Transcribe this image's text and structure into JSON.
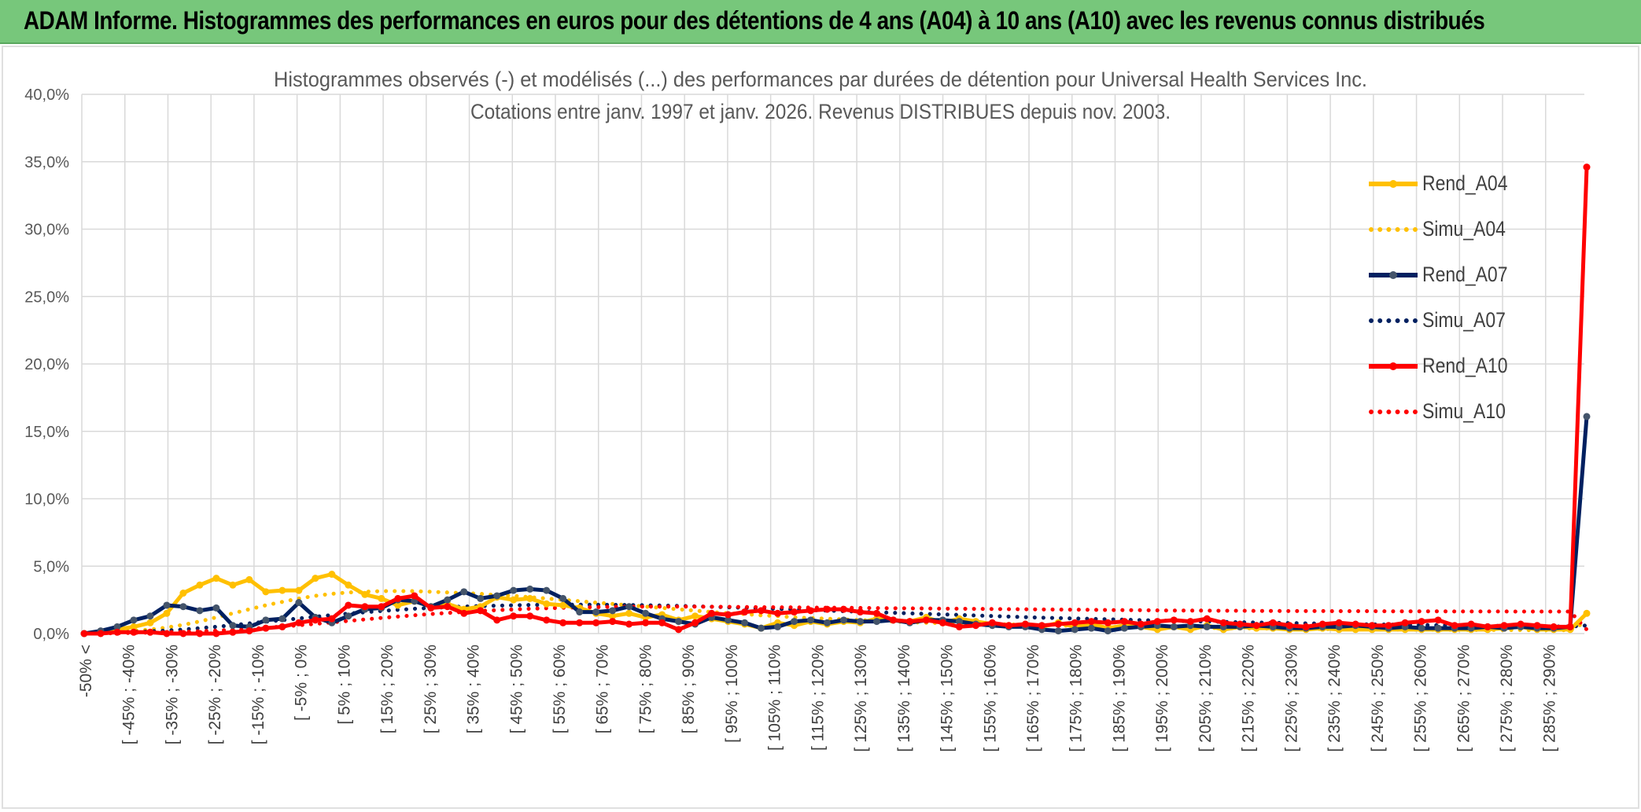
{
  "header": {
    "banner_title": "ADAM Informe. Histogrammes des performances en euros pour des détentions de 4 ans (A04) à 10 ans (A10) avec les revenus connus distribués"
  },
  "chart_data": {
    "type": "line",
    "title": "Histogrammes observés (-) et modélisés (...) des performances par durées de détention pour Universal Health Services Inc.",
    "subtitle": "Cotations entre janv. 1997 et janv. 2026. Revenus DISTRIBUES depuis nov. 2003.",
    "xlabel": "",
    "ylabel": "",
    "ylim": [
      0,
      40
    ],
    "y_ticks": [
      "0,0%",
      "5,0%",
      "10,0%",
      "15,0%",
      "20,0%",
      "25,0%",
      "30,0%",
      "35,0%",
      "40,0%"
    ],
    "x_tick_labels": [
      "-50% <",
      "[ -45% ; -40%",
      "[ -35% ; -30%",
      "[ -25% ; -20%",
      "[ -15% ; -10%",
      "[ -5% ; 0%",
      "[ 5% ; 10%",
      "[ 15% ; 20%",
      "[ 25% ; 30%",
      "[ 35% ; 40%",
      "[ 45% ; 50%",
      "[ 55% ; 60%",
      "[ 65% ; 70%",
      "[ 75% ; 80%",
      "[ 85% ; 90%",
      "[ 95% ; 100%",
      "[ 105% ; 110%",
      "[ 115% ; 120%",
      "[ 125% ; 130%",
      "[ 135% ; 140%",
      "[ 145% ; 150%",
      "[ 155% ; 160%",
      "[ 165% ; 170%",
      "[ 175% ; 180%",
      "[ 185% ; 190%",
      "[ 195% ; 200%",
      "[ 205% ; 210%",
      "[ 215% ; 220%",
      "[ 225% ; 230%",
      "[ 235% ; 240%",
      "[ 245% ; 250%",
      "[ 255% ; 260%",
      "[ 265% ; 270%",
      "[ 275% ; 280%",
      "[ 285% ; 290%"
    ],
    "grid": true,
    "legend_position": "right",
    "series": [
      {
        "name": "Rend_A04",
        "style": "solid",
        "color": "#FFC000",
        "markers": true,
        "values": [
          0.0,
          0.1,
          0.3,
          0.5,
          0.8,
          1.5,
          3.0,
          3.6,
          4.1,
          3.6,
          4.0,
          3.1,
          3.2,
          3.2,
          4.1,
          4.4,
          3.6,
          2.9,
          2.6,
          2.1,
          2.4,
          2.0,
          2.2,
          1.8,
          2.0,
          2.7,
          2.5,
          2.6,
          2.2,
          2.1,
          1.9,
          1.5,
          1.3,
          1.5,
          1.2,
          1.4,
          1.0,
          1.3,
          1.1,
          0.9,
          0.7,
          0.4,
          0.8,
          0.6,
          0.9,
          0.7,
          0.9,
          0.8,
          1.1,
          1.0,
          0.9,
          1.2,
          0.8,
          1.1,
          0.9,
          0.7,
          0.6,
          0.7,
          0.5,
          0.8,
          0.5,
          0.7,
          0.4,
          0.6,
          0.5,
          0.3,
          0.5,
          0.3,
          0.6,
          0.3,
          0.5,
          0.4,
          0.4,
          0.3,
          0.3,
          0.4,
          0.3,
          0.3,
          0.3,
          0.3,
          0.3,
          0.3,
          0.3,
          0.3,
          0.3,
          0.3,
          0.4,
          0.5,
          0.3,
          0.3,
          0.3,
          1.5
        ]
      },
      {
        "name": "Simu_A04",
        "style": "dotted",
        "color": "#FFC000",
        "markers": false,
        "values": [
          0.0,
          0.05,
          0.1,
          0.2,
          0.3,
          0.45,
          0.65,
          0.9,
          1.2,
          1.5,
          1.8,
          2.1,
          2.35,
          2.6,
          2.8,
          2.95,
          3.05,
          3.1,
          3.15,
          3.15,
          3.15,
          3.1,
          3.05,
          3.0,
          2.95,
          2.85,
          2.8,
          2.7,
          2.6,
          2.5,
          2.4,
          2.3,
          2.2,
          2.1,
          2.0,
          1.9,
          1.8,
          1.7,
          1.6,
          1.5,
          1.45,
          1.35,
          1.3,
          1.2,
          1.15,
          1.1,
          1.05,
          1.0,
          0.95,
          0.9,
          0.85,
          0.8,
          0.78,
          0.75,
          0.72,
          0.7,
          0.68,
          0.65,
          0.62,
          0.6,
          0.58,
          0.55,
          0.53,
          0.5,
          0.48,
          0.46,
          0.45,
          0.43,
          0.42,
          0.4,
          0.39,
          0.38,
          0.37,
          0.36,
          0.35,
          0.34,
          0.33,
          0.32,
          0.31,
          0.3,
          0.3,
          0.29,
          0.28,
          0.28,
          0.27,
          0.27,
          0.26,
          0.26,
          0.25,
          0.25,
          0.25,
          0.9
        ]
      },
      {
        "name": "Rend_A07",
        "style": "solid",
        "color": "#002060",
        "markers": true,
        "marker_color": "#44546A",
        "values": [
          0.0,
          0.2,
          0.5,
          1.0,
          1.3,
          2.1,
          2.0,
          1.7,
          1.9,
          0.6,
          0.5,
          1.0,
          1.1,
          2.3,
          1.2,
          0.8,
          1.3,
          1.8,
          1.9,
          2.5,
          2.4,
          2.0,
          2.5,
          3.1,
          2.6,
          2.8,
          3.2,
          3.3,
          3.2,
          2.6,
          1.6,
          1.6,
          1.7,
          2.0,
          1.5,
          1.1,
          0.9,
          0.7,
          1.2,
          1.0,
          0.8,
          0.4,
          0.5,
          0.9,
          1.0,
          0.8,
          1.0,
          0.9,
          0.9,
          1.0,
          0.8,
          1.0,
          1.0,
          0.9,
          0.7,
          0.6,
          0.5,
          0.5,
          0.3,
          0.2,
          0.3,
          0.4,
          0.2,
          0.4,
          0.5,
          0.6,
          0.5,
          0.6,
          0.5,
          0.5,
          0.5,
          0.6,
          0.5,
          0.4,
          0.4,
          0.5,
          0.5,
          0.6,
          0.5,
          0.4,
          0.5,
          0.4,
          0.4,
          0.4,
          0.4,
          0.5,
          0.4,
          0.5,
          0.4,
          0.4,
          0.5,
          16.1
        ]
      },
      {
        "name": "Simu_A07",
        "style": "dotted",
        "color": "#002060",
        "markers": false,
        "values": [
          0.0,
          0.05,
          0.08,
          0.12,
          0.17,
          0.23,
          0.3,
          0.4,
          0.5,
          0.62,
          0.75,
          0.88,
          1.0,
          1.12,
          1.25,
          1.37,
          1.48,
          1.58,
          1.68,
          1.76,
          1.84,
          1.9,
          1.96,
          2.0,
          2.04,
          2.07,
          2.1,
          2.12,
          2.13,
          2.14,
          2.14,
          2.14,
          2.13,
          2.12,
          2.1,
          2.08,
          2.05,
          2.02,
          1.99,
          1.95,
          1.91,
          1.87,
          1.83,
          1.79,
          1.75,
          1.71,
          1.66,
          1.62,
          1.58,
          1.54,
          1.5,
          1.46,
          1.42,
          1.38,
          1.34,
          1.3,
          1.26,
          1.22,
          1.18,
          1.15,
          1.12,
          1.09,
          1.06,
          1.03,
          1.0,
          0.97,
          0.94,
          0.92,
          0.89,
          0.87,
          0.84,
          0.82,
          0.8,
          0.78,
          0.76,
          0.74,
          0.72,
          0.7,
          0.68,
          0.67,
          0.65,
          0.63,
          0.62,
          0.6,
          0.59,
          0.58,
          0.56,
          0.55,
          0.54,
          0.53,
          0.52,
          0.6
        ]
      },
      {
        "name": "Rend_A10",
        "style": "solid",
        "color": "#FF0000",
        "markers": true,
        "values": [
          0.0,
          0.0,
          0.1,
          0.1,
          0.1,
          0.0,
          0.0,
          0.0,
          0.0,
          0.1,
          0.2,
          0.4,
          0.5,
          0.8,
          1.0,
          1.1,
          2.1,
          2.0,
          2.0,
          2.6,
          2.8,
          1.9,
          2.0,
          1.5,
          1.7,
          1.0,
          1.3,
          1.3,
          1.0,
          0.8,
          0.8,
          0.8,
          0.9,
          0.7,
          0.8,
          0.8,
          0.3,
          0.8,
          1.5,
          1.4,
          1.6,
          1.7,
          1.5,
          1.6,
          1.7,
          1.8,
          1.8,
          1.6,
          1.5,
          1.0,
          0.9,
          1.0,
          0.8,
          0.5,
          0.6,
          0.8,
          0.6,
          0.7,
          0.6,
          0.7,
          0.8,
          0.9,
          0.8,
          0.9,
          0.7,
          0.9,
          1.0,
          0.9,
          1.1,
          0.8,
          0.7,
          0.6,
          0.8,
          0.6,
          0.5,
          0.7,
          0.8,
          0.7,
          0.6,
          0.6,
          0.8,
          0.9,
          1.0,
          0.6,
          0.7,
          0.5,
          0.6,
          0.7,
          0.6,
          0.5,
          0.5,
          34.6
        ]
      },
      {
        "name": "Simu_A10",
        "style": "dotted",
        "color": "#FF0000",
        "markers": false,
        "values": [
          0.0,
          0.02,
          0.03,
          0.05,
          0.07,
          0.1,
          0.13,
          0.17,
          0.22,
          0.28,
          0.35,
          0.43,
          0.52,
          0.62,
          0.72,
          0.83,
          0.94,
          1.05,
          1.16,
          1.26,
          1.36,
          1.45,
          1.53,
          1.61,
          1.68,
          1.74,
          1.79,
          1.84,
          1.88,
          1.91,
          1.94,
          1.96,
          1.98,
          1.99,
          2.0,
          2.0,
          2.0,
          2.0,
          1.99,
          1.98,
          1.97,
          1.96,
          1.95,
          1.94,
          1.93,
          1.92,
          1.91,
          1.9,
          1.89,
          1.88,
          1.87,
          1.86,
          1.85,
          1.84,
          1.83,
          1.82,
          1.81,
          1.8,
          1.79,
          1.78,
          1.77,
          1.76,
          1.75,
          1.74,
          1.73,
          1.72,
          1.71,
          1.7,
          1.7,
          1.69,
          1.69,
          1.68,
          1.68,
          1.67,
          1.67,
          1.67,
          1.66,
          1.66,
          1.66,
          1.65,
          1.65,
          1.65,
          1.65,
          1.64,
          1.64,
          1.64,
          1.64,
          1.63,
          1.63,
          1.63,
          1.63,
          0.3
        ]
      }
    ]
  }
}
